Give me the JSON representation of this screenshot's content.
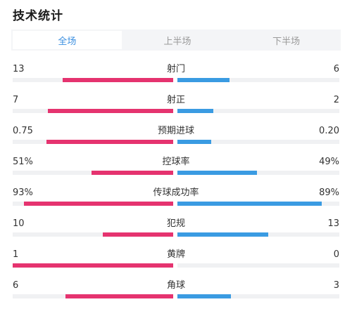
{
  "header": {
    "title": "技术统计"
  },
  "tabs": [
    {
      "label": "全场",
      "active": true
    },
    {
      "label": "上半场",
      "active": false
    },
    {
      "label": "下半场",
      "active": false
    }
  ],
  "colors": {
    "home": "#e5336f",
    "away": "#3a9be2",
    "active_tab": "#3b8fe0"
  },
  "stats": [
    {
      "label": "射门",
      "home": "13",
      "away": "6",
      "home_fill": 0.69,
      "away_fill": 0.32
    },
    {
      "label": "射正",
      "home": "7",
      "away": "2",
      "home_fill": 0.78,
      "away_fill": 0.22
    },
    {
      "label": "预期进球",
      "home": "0.75",
      "away": "0.20",
      "home_fill": 0.79,
      "away_fill": 0.21
    },
    {
      "label": "控球率",
      "home": "51%",
      "away": "49%",
      "home_fill": 0.51,
      "away_fill": 0.49
    },
    {
      "label": "传球成功率",
      "home": "93%",
      "away": "89%",
      "home_fill": 0.93,
      "away_fill": 0.89
    },
    {
      "label": "犯规",
      "home": "10",
      "away": "13",
      "home_fill": 0.44,
      "away_fill": 0.56
    },
    {
      "label": "黄牌",
      "home": "1",
      "away": "0",
      "home_fill": 1.0,
      "away_fill": 0.0
    },
    {
      "label": "角球",
      "home": "6",
      "away": "3",
      "home_fill": 0.67,
      "away_fill": 0.33
    }
  ]
}
